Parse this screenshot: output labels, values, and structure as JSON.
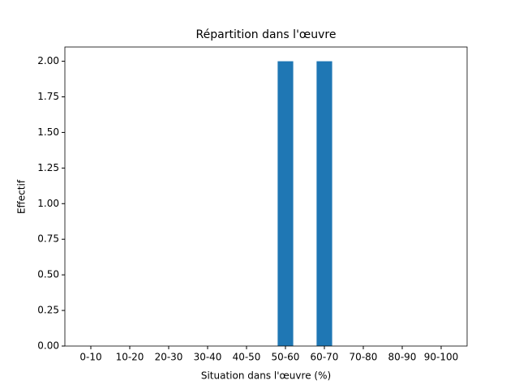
{
  "chart_data": {
    "type": "bar",
    "title": "Répartition dans l'œuvre",
    "x_label": "Situation dans l'œuvre (%)",
    "y_label": "Effectif",
    "categories": [
      "0-10",
      "10-20",
      "20-30",
      "30-40",
      "40-50",
      "50-60",
      "60-70",
      "70-80",
      "80-90",
      "90-100"
    ],
    "values": [
      0,
      0,
      0,
      0,
      0,
      2,
      2,
      0,
      0,
      0
    ],
    "color": "#1f77b4",
    "ylim": [
      0,
      2.1
    ],
    "yticks": [
      {
        "value": 0,
        "label": "0.00"
      },
      {
        "value": 0.25,
        "label": "0.25"
      },
      {
        "value": 0.5,
        "label": "0.50"
      },
      {
        "value": 0.75,
        "label": "0.75"
      },
      {
        "value": 1,
        "label": "1.00"
      },
      {
        "value": 1.25,
        "label": "1.25"
      },
      {
        "value": 1.5,
        "label": "1.50"
      },
      {
        "value": 1.75,
        "label": "1.75"
      },
      {
        "value": 2,
        "label": "2.00"
      }
    ],
    "grid": false
  }
}
